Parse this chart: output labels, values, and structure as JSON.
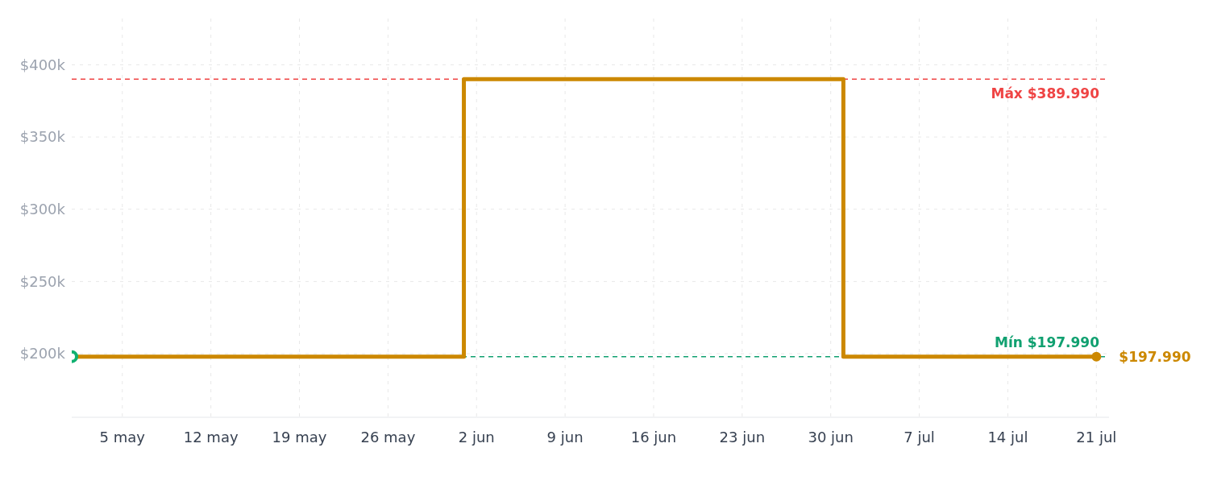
{
  "chart_data": {
    "type": "step",
    "x": [
      "--05-01",
      "--06-01",
      "--07-01",
      "--07-21"
    ],
    "series": [
      {
        "color": "#cc8800",
        "values": [
          197990,
          389990,
          197990,
          197990
        ]
      }
    ],
    "xlim": [
      "--05-01",
      "--07-22"
    ],
    "xticks": [
      {
        "value": "--05-05",
        "label": "5 may"
      },
      {
        "value": "--05-12",
        "label": "12 may"
      },
      {
        "value": "--05-19",
        "label": "19 may"
      },
      {
        "value": "--05-26",
        "label": "26 may"
      },
      {
        "value": "--06-02",
        "label": "2 jun"
      },
      {
        "value": "--06-09",
        "label": "9 jun"
      },
      {
        "value": "--06-16",
        "label": "16 jun"
      },
      {
        "value": "--06-23",
        "label": "23 jun"
      },
      {
        "value": "--06-30",
        "label": "30 jun"
      },
      {
        "value": "--07-07",
        "label": "7 jul"
      },
      {
        "value": "--07-14",
        "label": "14 jul"
      },
      {
        "value": "--07-21",
        "label": "21 jul"
      }
    ],
    "ylim": [
      156000,
      432000
    ],
    "yticks": [
      {
        "value": 200000,
        "label": "$200k"
      },
      {
        "value": 250000,
        "label": "$250k"
      },
      {
        "value": 300000,
        "label": "$300k"
      },
      {
        "value": 350000,
        "label": "$350k"
      },
      {
        "value": 400000,
        "label": "$400k"
      }
    ],
    "ref_lines": [
      {
        "axis": "y",
        "value": 389990,
        "label": "Máx $389.990",
        "color": "#ef4444",
        "line_style": "dashed"
      },
      {
        "axis": "y",
        "value": 197990,
        "label": "Mín $197.990",
        "color": "#10a070",
        "line_style": "dashed"
      }
    ],
    "annotations": [
      {
        "text": "$197.990",
        "x": "--07-21",
        "y": 197990
      }
    ],
    "grid": true,
    "legend": false,
    "marker": "circle",
    "line_style": "solid"
  }
}
